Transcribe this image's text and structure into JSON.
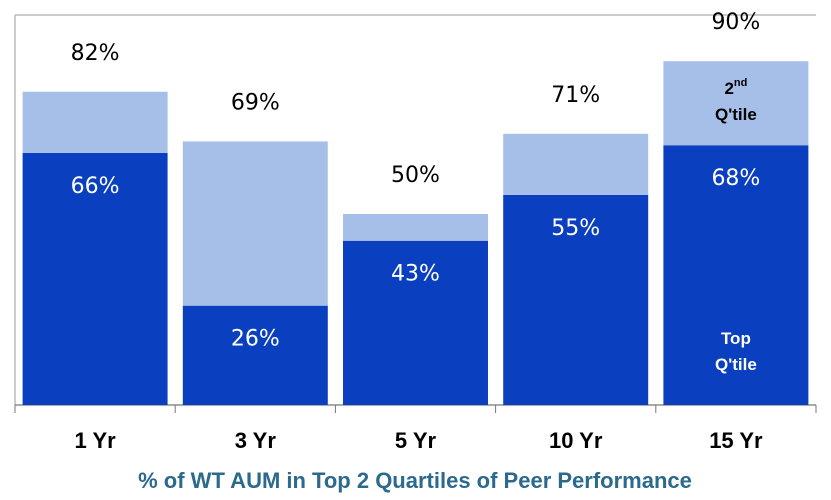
{
  "chart_data": {
    "type": "stacked_bar",
    "title": "% of WT AUM in Top 2 Quartiles of Peer Performance",
    "categories": [
      "1 Yr",
      "3 Yr",
      "5 Yr",
      "10 Yr",
      "15 Yr"
    ],
    "series": [
      {
        "name": "Top Q'tile",
        "color": "#0a3fbf",
        "values": [
          66,
          26,
          43,
          55,
          68
        ],
        "value_labels": [
          "66%",
          "26%",
          "43%",
          "55%",
          "68%"
        ]
      },
      {
        "name": "2nd Q'tile",
        "color": "#a6bfe8",
        "values": [
          16,
          43,
          7,
          16,
          22
        ]
      }
    ],
    "total_labels": [
      "82%",
      "69%",
      "50%",
      "71%",
      "90%"
    ],
    "ylim": [
      0,
      100
    ]
  }
}
